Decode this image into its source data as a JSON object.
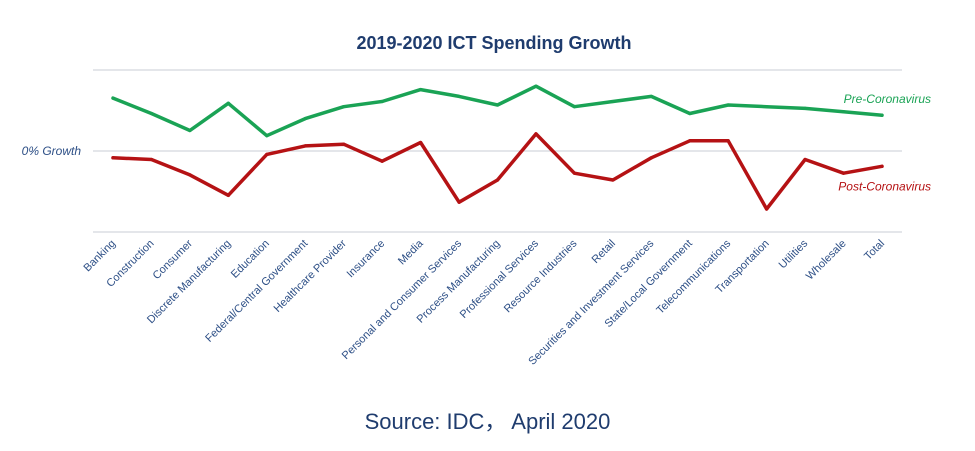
{
  "chart_data": {
    "type": "line",
    "title": "2019-2020 ICT Spending Growth",
    "xlabel": "",
    "ylabel": "",
    "reference_line": {
      "label": "0% Growth",
      "value": 0
    },
    "ylim": [
      -4.75,
      4.75
    ],
    "grid": "horizontal",
    "categories": [
      "Banking",
      "Construction",
      "Consumer",
      "Discrete Manufacturing",
      "Education",
      "Federal/Central Government",
      "Healthcare Provider",
      "Insurance",
      "Media",
      "Personal and Consumer Services",
      "Process Manufacturing",
      "Professional Services",
      "Resource Industries",
      "Retail",
      "Securities and Investment Services",
      "State/Local Government",
      "Telecommunications",
      "Transportation",
      "Utilities",
      "Wholesale",
      "Total"
    ],
    "series": [
      {
        "name": "Pre-Coronavirus",
        "color": "#1aa355",
        "values": [
          3.1,
          2.2,
          1.2,
          2.8,
          0.9,
          1.9,
          2.6,
          2.9,
          3.6,
          3.2,
          2.7,
          3.8,
          2.6,
          2.9,
          3.2,
          2.2,
          2.7,
          2.6,
          2.5,
          2.3,
          2.1
        ]
      },
      {
        "name": "Post-Coronavirus",
        "color": "#b51214",
        "values": [
          -0.4,
          -0.5,
          -1.4,
          -2.6,
          -0.2,
          0.3,
          0.4,
          -0.6,
          0.5,
          -3.0,
          -1.7,
          1.0,
          -1.3,
          -1.7,
          -0.4,
          0.6,
          0.6,
          -3.4,
          -0.5,
          -1.3,
          -0.9
        ]
      }
    ],
    "colors": {
      "title": "#1f3c6e",
      "tick_labels": "#2d4f86",
      "reference_label": "#2d4f86",
      "gridline": "#c9cdd6",
      "source": "#1f3c6e"
    }
  },
  "footer": {
    "source": "Source: IDC， April 2020"
  }
}
